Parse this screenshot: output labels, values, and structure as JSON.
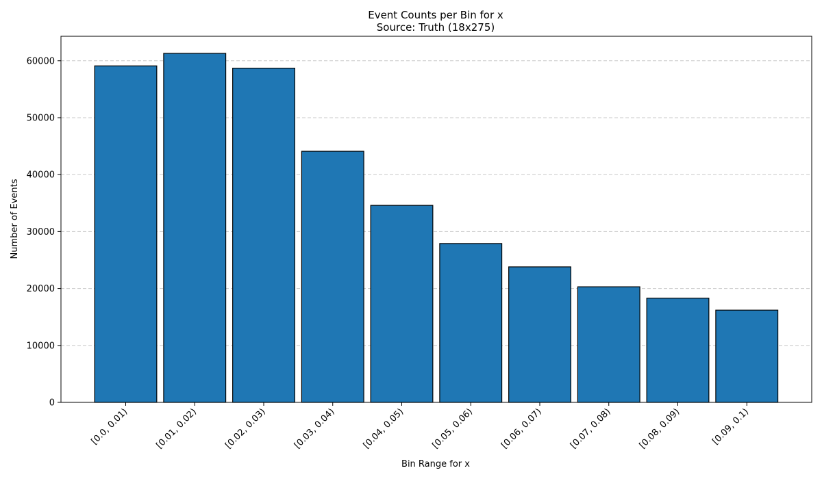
{
  "chart_data": {
    "type": "bar",
    "title": "Event Counts per Bin for x",
    "subtitle": "Source: Truth (18x275)",
    "xlabel": "Bin Range for x",
    "ylabel": "Number of Events",
    "categories": [
      "[0.0, 0.01)",
      "[0.01, 0.02)",
      "[0.02, 0.03)",
      "[0.03, 0.04)",
      "[0.04, 0.05)",
      "[0.05, 0.06)",
      "[0.06, 0.07)",
      "[0.07, 0.08)",
      "[0.08, 0.09)",
      "[0.09, 0.1)"
    ],
    "values": [
      59100,
      61300,
      58700,
      44100,
      34600,
      27900,
      23800,
      20300,
      18300,
      16200
    ],
    "ylim": [
      0,
      64300
    ],
    "yticks": [
      0,
      10000,
      20000,
      30000,
      40000,
      50000,
      60000
    ],
    "ytick_labels": [
      "0",
      "10000",
      "20000",
      "30000",
      "40000",
      "50000",
      "60000"
    ],
    "grid": "y-dashed",
    "bar_color": "#1f77b4",
    "edge_color": "#000000"
  }
}
